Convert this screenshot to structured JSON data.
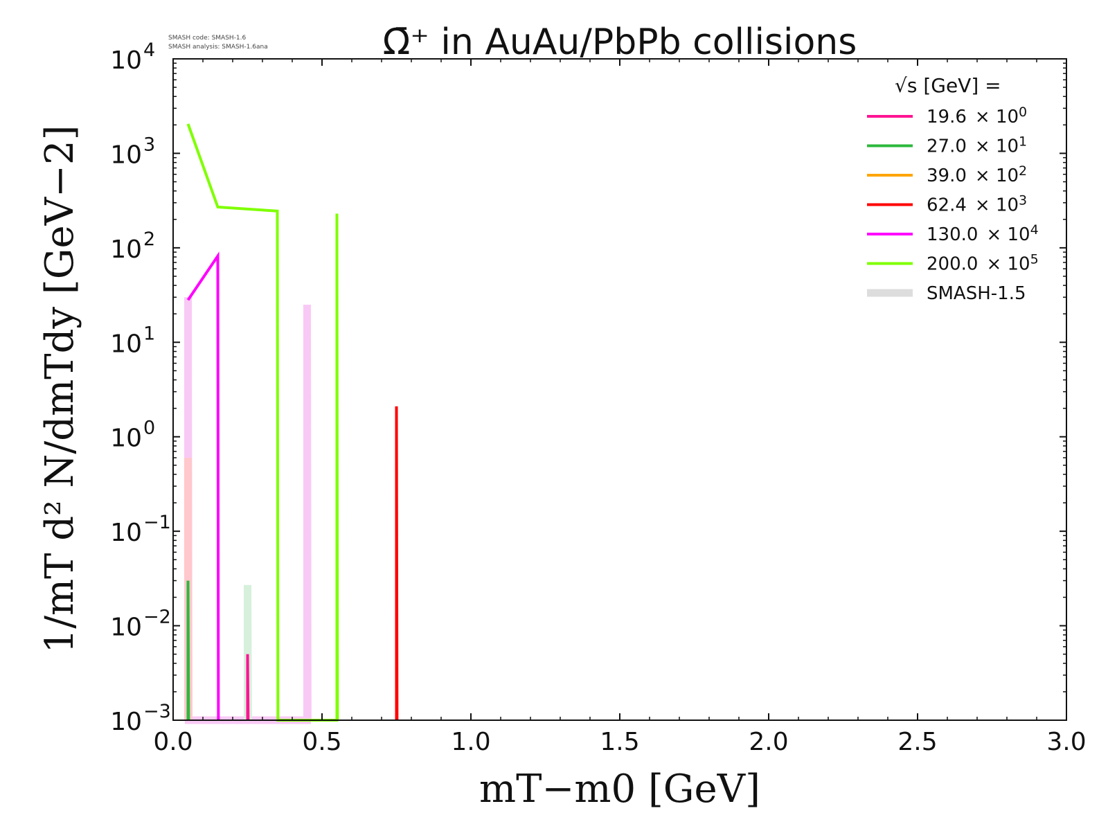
{
  "chart_data": {
    "type": "line",
    "title": "Ω̄⁺ in AuAu/PbPb collisions",
    "notes": [
      "SMASH code:      SMASH-1.6",
      "SMASH analysis: SMASH-1.6ana"
    ],
    "xlabel": "mT−m0 [GeV]",
    "ylabel": "1/mT d² N/dmTdy [GeV−2]",
    "xlim": [
      0.0,
      3.0
    ],
    "ylim": [
      0.001,
      10000
    ],
    "yscale": "log",
    "x_ticks": [
      "0.0",
      "0.5",
      "1.0",
      "1.5",
      "2.0",
      "2.5",
      "3.0"
    ],
    "y_ticks": [
      {
        "base": "10",
        "exp": "−3"
      },
      {
        "base": "10",
        "exp": "−2"
      },
      {
        "base": "10",
        "exp": "−1"
      },
      {
        "base": "10",
        "exp": "0"
      },
      {
        "base": "10",
        "exp": "1"
      },
      {
        "base": "10",
        "exp": "2"
      },
      {
        "base": "10",
        "exp": "3"
      },
      {
        "base": "10",
        "exp": "4"
      }
    ],
    "legend": {
      "title": "√s  [GeV] =",
      "placement": "top-right",
      "entries": [
        {
          "value": "19.6",
          "mult": "× 10",
          "exp": "0",
          "color": "#ff1493"
        },
        {
          "value": "27.0",
          "mult": "× 10",
          "exp": "1",
          "color": "#2db83d"
        },
        {
          "value": "39.0",
          "mult": "× 10",
          "exp": "2",
          "color": "#ffa500"
        },
        {
          "value": "62.4",
          "mult": "× 10",
          "exp": "3",
          "color": "#ff0000"
        },
        {
          "value": "130.0",
          "mult": "× 10",
          "exp": "4",
          "color": "#ff00ff"
        },
        {
          "value": "200.0",
          "mult": "× 10",
          "exp": "5",
          "color": "#7fff00"
        },
        {
          "value": "SMASH-1.5",
          "mult": "",
          "exp": "",
          "color": "#dddddd"
        }
      ]
    },
    "series": [
      {
        "name": "19.6",
        "color": "#ff1493",
        "width": 4,
        "points": [
          [
            0.25,
            0.001
          ],
          [
            0.25,
            0.005
          ],
          [
            0.252,
            0.001
          ]
        ]
      },
      {
        "name": "27.0",
        "color": "#2db83d",
        "width": 4,
        "points": [
          [
            0.05,
            0.001
          ],
          [
            0.05,
            0.03
          ],
          [
            0.052,
            0.001
          ]
        ]
      },
      {
        "name": "62.4",
        "color": "#ff0000",
        "width": 4,
        "points": [
          [
            0.75,
            0.001
          ],
          [
            0.75,
            2.1
          ],
          [
            0.752,
            0.001
          ]
        ]
      },
      {
        "name": "130.0",
        "color": "#ff00ff",
        "width": 4,
        "points": [
          [
            0.05,
            28
          ],
          [
            0.15,
            82
          ],
          [
            0.152,
            0.001
          ]
        ]
      },
      {
        "name": "200.0",
        "color": "#7fff00",
        "width": 4,
        "points": [
          [
            0.05,
            2050
          ],
          [
            0.15,
            270
          ],
          [
            0.35,
            245
          ],
          [
            0.352,
            0.001
          ],
          [
            0.55,
            0.001
          ],
          [
            0.55,
            230
          ],
          [
            0.552,
            0.001
          ]
        ]
      }
    ],
    "reference_series": [
      {
        "name": "SMASH-1.5 (130.0)",
        "color": "#f9c9f5",
        "width": 11,
        "points": [
          [
            0.05,
            0.001
          ],
          [
            0.05,
            30
          ],
          [
            0.052,
            0.001
          ],
          [
            0.45,
            0.001
          ],
          [
            0.45,
            25
          ],
          [
            0.452,
            0.001
          ]
        ]
      },
      {
        "name": "SMASH-1.5 (62.4)",
        "color": "#ffc8cc",
        "width": 11,
        "points": [
          [
            0.05,
            0.001
          ],
          [
            0.05,
            0.6
          ],
          [
            0.052,
            0.001
          ]
        ]
      },
      {
        "name": "SMASH-1.5 (27.0)",
        "color": "#d6f0dc",
        "width": 11,
        "points": [
          [
            0.25,
            0.001
          ],
          [
            0.25,
            0.027
          ],
          [
            0.252,
            0.001
          ]
        ]
      }
    ]
  }
}
